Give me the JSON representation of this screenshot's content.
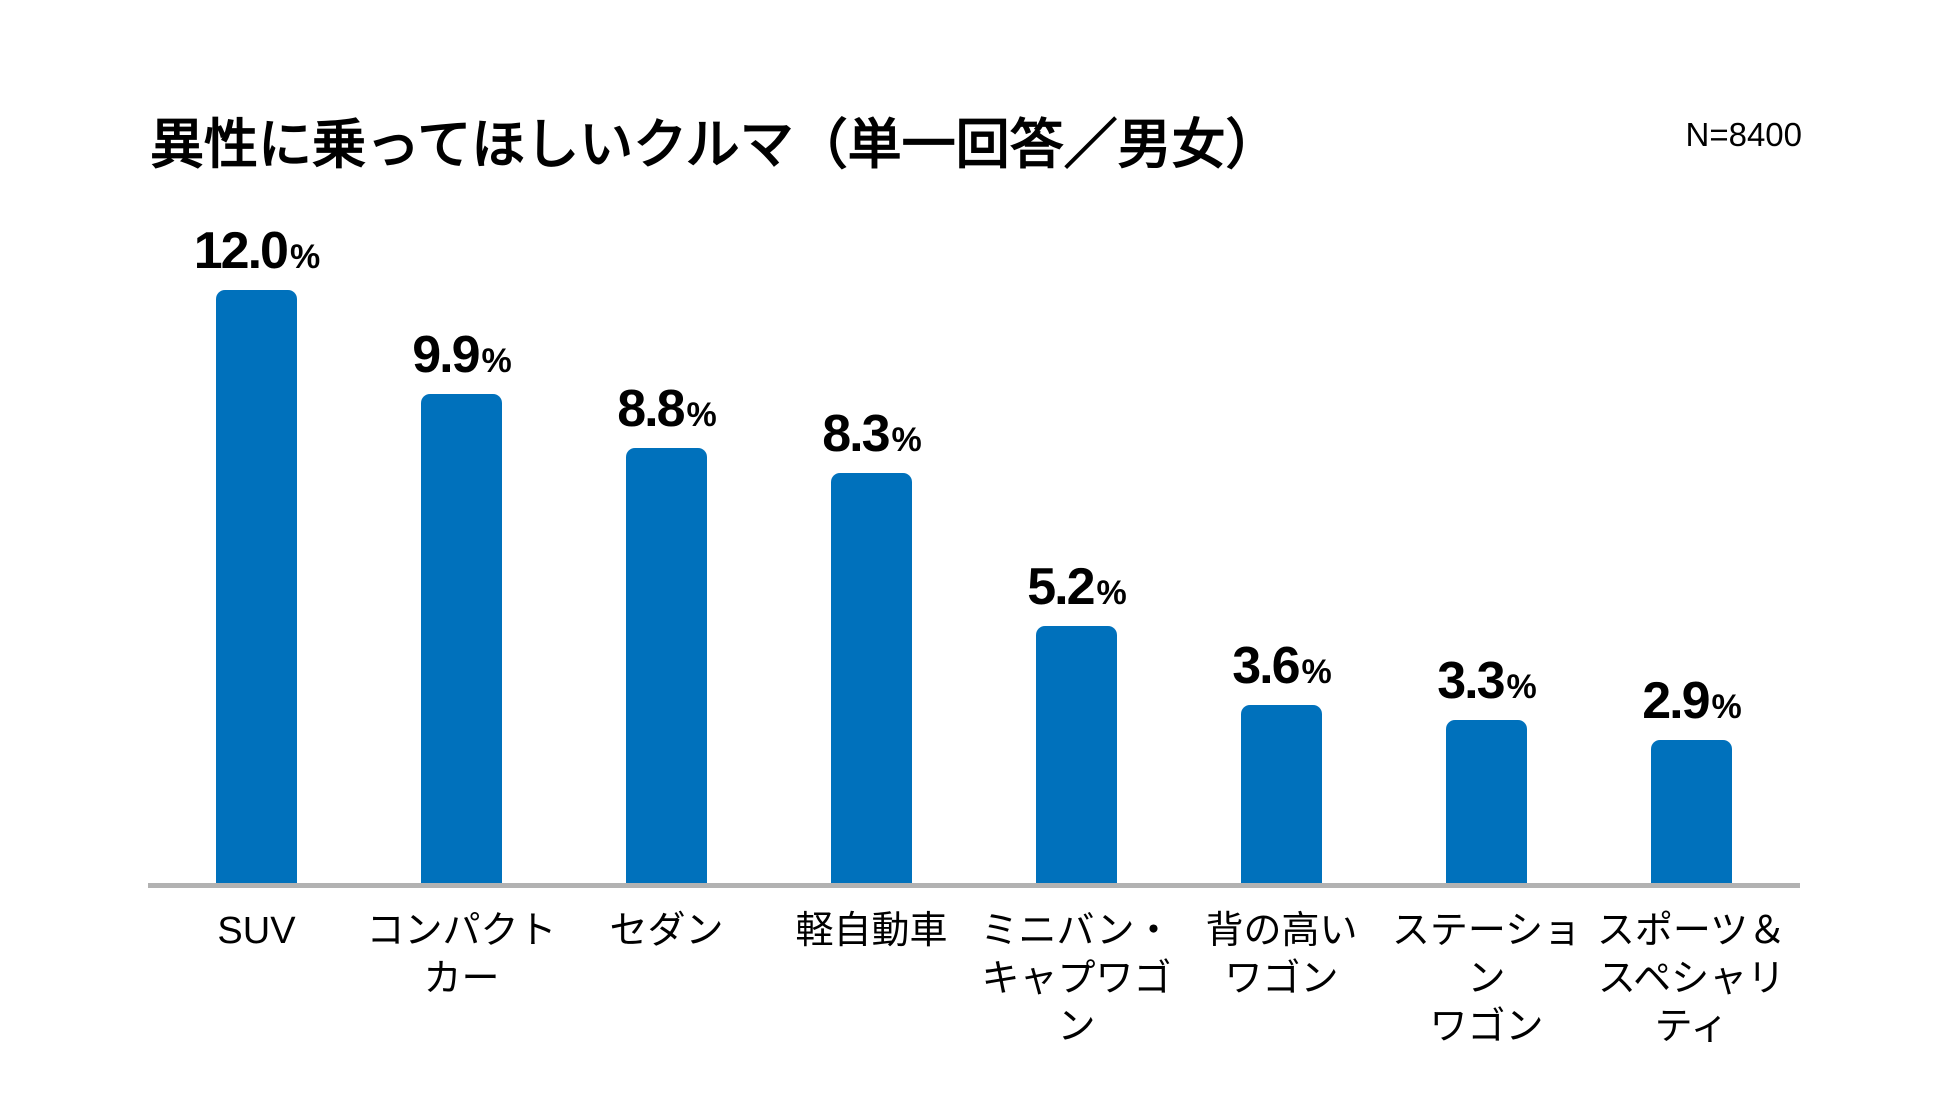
{
  "header": {
    "title": "異性に乗ってほしいクルマ（単一回答／男女）",
    "sample_size": "N=8400"
  },
  "chart_data": {
    "type": "bar",
    "title": "異性に乗ってほしいクルマ（単一回答／男女）",
    "sample_size": "N=8400",
    "categories": [
      "SUV",
      "コンパクト\nカー",
      "セダン",
      "軽自動車",
      "ミニバン・\nキャプワゴン",
      "背の高い\nワゴン",
      "ステーション\nワゴン",
      "スポーツ＆\nスペシャリティ"
    ],
    "values": [
      12.0,
      9.9,
      8.8,
      8.3,
      5.2,
      3.6,
      3.3,
      2.9
    ],
    "value_labels": [
      "12.0",
      "9.9",
      "8.8",
      "8.3",
      "5.2",
      "3.6",
      "3.3",
      "2.9"
    ],
    "unit": "%",
    "ylim": [
      0,
      12.5
    ],
    "grid": false,
    "legend": "none",
    "bar_color": "#0071bc",
    "axis_color": "#b2b2b2",
    "text_color": "#000000"
  }
}
